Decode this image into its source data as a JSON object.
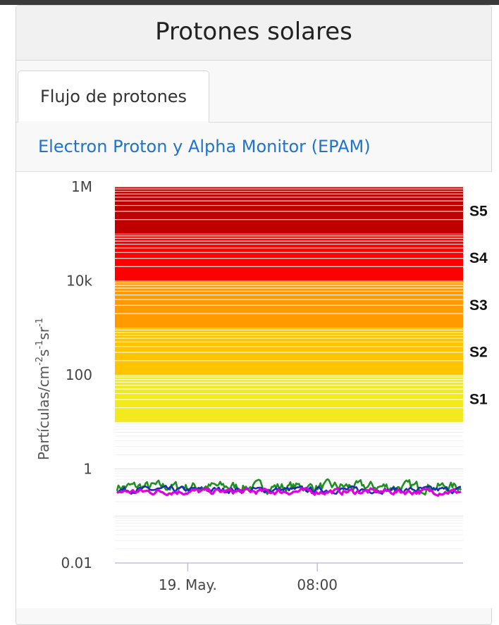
{
  "card": {
    "title": "Protones solares",
    "tab_label": "Flujo de protones",
    "instrument_link": "Electron Proton y Alpha Monitor (EPAM)"
  },
  "chart_data": {
    "type": "line",
    "yscale": "log",
    "ylim": [
      0.01,
      1000000
    ],
    "ylabel": "Partículas/cm-2s-1sr-1",
    "ylabel_parts": {
      "base": "Partículas/cm",
      "sup1": "-2",
      "mid1": "s",
      "sup2": "-1",
      "mid2": "sr",
      "sup3": "-1"
    },
    "ytick_values": [
      0.01,
      1,
      100,
      10000,
      1000000
    ],
    "ytick_labels": [
      "0.01",
      "1",
      "100",
      "10k",
      "1M"
    ],
    "xlim": [
      "2025-05-18 19:30",
      "2025-05-19 17:00"
    ],
    "xtick_values": [
      "2025-05-19 00:00",
      "2025-05-19 08:00"
    ],
    "xtick_labels": [
      "19. May.",
      "08:00"
    ],
    "scale_bands": [
      {
        "label": "S1",
        "from": 10,
        "to": 100,
        "color": "#f2ea1c"
      },
      {
        "label": "S2",
        "from": 100,
        "to": 1000,
        "color": "#ffc400"
      },
      {
        "label": "S3",
        "from": 1000,
        "to": 10000,
        "color": "#ff9a00"
      },
      {
        "label": "S4",
        "from": 10000,
        "to": 100000,
        "color": "#ff0000"
      },
      {
        "label": "S5",
        "from": 100000,
        "to": 1000000,
        "color": "#c00000"
      }
    ],
    "series": [
      {
        "color": "#1f8f1f",
        "level": 0.42,
        "noise": 0.09
      },
      {
        "color": "#1a2fb0",
        "level": 0.36,
        "noise": 0.05
      },
      {
        "color": "#e000e0",
        "level": 0.33,
        "noise": 0.05
      }
    ]
  }
}
